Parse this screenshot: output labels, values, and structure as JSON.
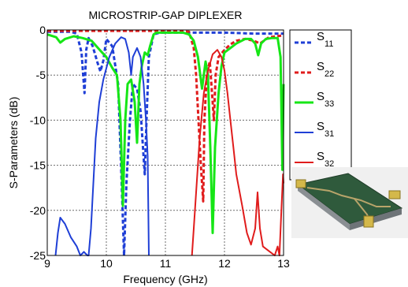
{
  "chart_data": {
    "type": "line",
    "title": "MICROSTRIP-GAP DIPLEXER",
    "xlabel": "Frequency (GHz)",
    "ylabel": "S-Parameters (dB)",
    "xlim": [
      9,
      13
    ],
    "ylim": [
      -25,
      0
    ],
    "xticks": [
      "9",
      "10",
      "11",
      "12",
      "13"
    ],
    "yticks": [
      "0",
      "-5",
      "-10",
      "-15",
      "-20",
      "-25"
    ],
    "grid": true,
    "legend_position": "right",
    "series": [
      {
        "name": "S11",
        "sym": "S",
        "sub": "11",
        "color": "#1f3fd6",
        "dash": true,
        "width": 3,
        "points": [
          [
            9.0,
            -0.2
          ],
          [
            9.4,
            -0.2
          ],
          [
            9.5,
            -0.4
          ],
          [
            9.58,
            -2.5
          ],
          [
            9.63,
            -7.0
          ],
          [
            9.66,
            -2.2
          ],
          [
            9.7,
            -0.9
          ],
          [
            9.77,
            -1.8
          ],
          [
            9.85,
            -3.6
          ],
          [
            9.9,
            -4.6
          ],
          [
            9.95,
            -3.4
          ],
          [
            10.0,
            -1.0
          ],
          [
            10.1,
            -1.8
          ],
          [
            10.2,
            -6.0
          ],
          [
            10.26,
            -17.0
          ],
          [
            10.3,
            -25.0
          ],
          [
            10.34,
            -17.0
          ],
          [
            10.4,
            -10.0
          ],
          [
            10.45,
            -6.0
          ],
          [
            10.52,
            -6.5
          ],
          [
            10.58,
            -9.0
          ],
          [
            10.62,
            -13.0
          ],
          [
            10.65,
            -16.0
          ],
          [
            10.68,
            -10.0
          ],
          [
            10.72,
            -3.0
          ],
          [
            10.8,
            -0.5
          ],
          [
            10.9,
            -0.3
          ],
          [
            11.0,
            -0.3
          ],
          [
            11.5,
            -0.3
          ],
          [
            12.0,
            -0.3
          ],
          [
            12.5,
            -0.4
          ],
          [
            13.0,
            -0.4
          ]
        ]
      },
      {
        "name": "S22",
        "sym": "S",
        "sub": "22",
        "color": "#e01c1c",
        "dash": true,
        "width": 3,
        "points": [
          [
            9.0,
            -0.1
          ],
          [
            10.0,
            -0.1
          ],
          [
            11.0,
            -0.1
          ],
          [
            11.4,
            -0.2
          ],
          [
            11.48,
            -2.0
          ],
          [
            11.52,
            -5.0
          ],
          [
            11.56,
            -10.0
          ],
          [
            11.6,
            -15.0
          ],
          [
            11.64,
            -19.0
          ],
          [
            11.66,
            -10.0
          ],
          [
            11.7,
            -5.0
          ],
          [
            11.75,
            -3.5
          ],
          [
            11.8,
            -8.0
          ],
          [
            11.82,
            -10.0
          ],
          [
            11.85,
            -5.0
          ],
          [
            11.9,
            -3.0
          ],
          [
            12.0,
            -2.2
          ],
          [
            12.1,
            -1.6
          ],
          [
            12.2,
            -1.2
          ],
          [
            12.35,
            -1.0
          ],
          [
            12.5,
            -1.2
          ],
          [
            12.6,
            -1.5
          ],
          [
            12.75,
            -0.8
          ],
          [
            13.0,
            -0.6
          ]
        ]
      },
      {
        "name": "S33",
        "sym": "S",
        "sub": "33",
        "color": "#16e616",
        "dash": false,
        "width": 3,
        "points": [
          [
            9.0,
            -0.5
          ],
          [
            9.15,
            -0.8
          ],
          [
            9.22,
            -1.4
          ],
          [
            9.3,
            -1.0
          ],
          [
            9.45,
            -0.7
          ],
          [
            9.6,
            -0.9
          ],
          [
            9.75,
            -1.2
          ],
          [
            9.9,
            -2.3
          ],
          [
            10.0,
            -3.0
          ],
          [
            10.1,
            -4.2
          ],
          [
            10.18,
            -5.0
          ],
          [
            10.24,
            -10.0
          ],
          [
            10.28,
            -19.5
          ],
          [
            10.32,
            -10.0
          ],
          [
            10.36,
            -6.0
          ],
          [
            10.42,
            -5.5
          ],
          [
            10.48,
            -8.0
          ],
          [
            10.52,
            -12.5
          ],
          [
            10.56,
            -6.0
          ],
          [
            10.6,
            -4.0
          ],
          [
            10.65,
            -2.5
          ],
          [
            10.7,
            -2.8
          ],
          [
            10.74,
            -1.8
          ],
          [
            10.8,
            -0.5
          ],
          [
            10.85,
            -0.3
          ],
          [
            11.0,
            -0.3
          ],
          [
            11.3,
            -0.3
          ],
          [
            11.4,
            -0.5
          ],
          [
            11.48,
            -1.2
          ],
          [
            11.55,
            -3.0
          ],
          [
            11.62,
            -6.5
          ],
          [
            11.68,
            -3.5
          ],
          [
            11.72,
            -5.0
          ],
          [
            11.76,
            -13.0
          ],
          [
            11.8,
            -22.5
          ],
          [
            11.84,
            -13.0
          ],
          [
            11.9,
            -7.0
          ],
          [
            11.95,
            -4.0
          ],
          [
            12.0,
            -2.5
          ],
          [
            12.1,
            -2.0
          ],
          [
            12.2,
            -1.5
          ],
          [
            12.35,
            -1.0
          ],
          [
            12.45,
            -1.0
          ],
          [
            12.52,
            -1.5
          ],
          [
            12.57,
            -2.8
          ],
          [
            12.62,
            -1.5
          ],
          [
            12.7,
            -1.0
          ],
          [
            12.8,
            -0.9
          ],
          [
            12.9,
            -0.9
          ],
          [
            12.95,
            -3.0
          ],
          [
            12.98,
            -15.5
          ],
          [
            13.0,
            -6.0
          ]
        ]
      },
      {
        "name": "S31",
        "sym": "S",
        "sub": "31",
        "color": "#1f3fd6",
        "dash": false,
        "width": 2,
        "points": [
          [
            9.14,
            -25.0
          ],
          [
            9.18,
            -22.5
          ],
          [
            9.22,
            -20.8
          ],
          [
            9.3,
            -21.5
          ],
          [
            9.4,
            -23.0
          ],
          [
            9.5,
            -24.0
          ],
          [
            9.56,
            -25.0
          ],
          [
            9.62,
            -24.6
          ],
          [
            9.68,
            -25.0
          ],
          [
            9.7,
            -25.0
          ],
          [
            9.74,
            -22.0
          ],
          [
            9.78,
            -17.0
          ],
          [
            9.82,
            -12.0
          ],
          [
            9.88,
            -8.0
          ],
          [
            9.95,
            -5.5
          ],
          [
            10.05,
            -3.0
          ],
          [
            10.15,
            -1.5
          ],
          [
            10.25,
            -0.8
          ],
          [
            10.32,
            -1.0
          ],
          [
            10.38,
            -2.5
          ],
          [
            10.42,
            -5.0
          ],
          [
            10.45,
            -3.0
          ],
          [
            10.52,
            -2.0
          ],
          [
            10.58,
            -3.0
          ],
          [
            10.63,
            -6.0
          ],
          [
            10.67,
            -10.0
          ],
          [
            10.7,
            -14.0
          ],
          [
            10.72,
            -25.0
          ]
        ]
      },
      {
        "name": "S32",
        "sym": "S",
        "sub": "32",
        "color": "#e01c1c",
        "dash": false,
        "width": 2,
        "points": [
          [
            11.45,
            -25.0
          ],
          [
            11.48,
            -22.0
          ],
          [
            11.52,
            -18.0
          ],
          [
            11.58,
            -12.0
          ],
          [
            11.65,
            -7.0
          ],
          [
            11.72,
            -4.5
          ],
          [
            11.8,
            -2.7
          ],
          [
            11.88,
            -2.2
          ],
          [
            11.95,
            -3.0
          ],
          [
            12.0,
            -4.5
          ],
          [
            12.05,
            -7.0
          ],
          [
            12.1,
            -10.0
          ],
          [
            12.15,
            -13.0
          ],
          [
            12.2,
            -16.0
          ],
          [
            12.3,
            -19.5
          ],
          [
            12.38,
            -22.5
          ],
          [
            12.45,
            -23.8
          ],
          [
            12.52,
            -22.0
          ],
          [
            12.56,
            -18.0
          ],
          [
            12.6,
            -22.0
          ],
          [
            12.65,
            -24.0
          ],
          [
            12.75,
            -24.5
          ],
          [
            12.85,
            -25.0
          ],
          [
            12.9,
            -24.0
          ],
          [
            12.93,
            -25.0
          ],
          [
            12.96,
            -20.5
          ],
          [
            12.99,
            -16.0
          ],
          [
            13.0,
            -17.0
          ]
        ]
      }
    ]
  }
}
